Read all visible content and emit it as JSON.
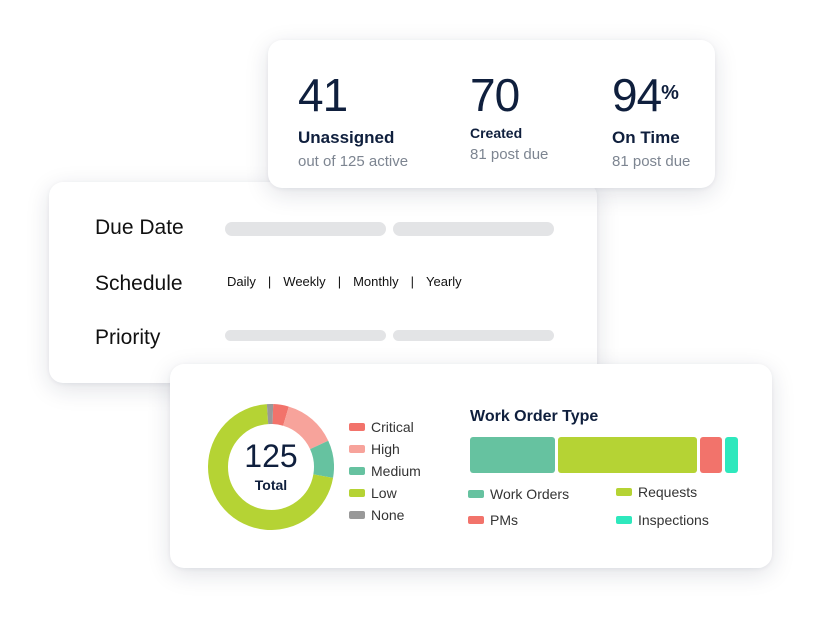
{
  "stats": [
    {
      "value": "41",
      "label": "Unassigned",
      "sub": "out of 125 active"
    },
    {
      "value": "70",
      "label": "Created",
      "sub": "81 post due"
    },
    {
      "value": "94",
      "suffix": "%",
      "label": "On Time",
      "sub": "81 post due"
    }
  ],
  "form": {
    "due_date_label": "Due Date",
    "schedule_label": "Schedule",
    "priority_label": "Priority",
    "schedule_options": [
      "Daily",
      "Weekly",
      "Monthly",
      "Yearly"
    ],
    "separator": "|"
  },
  "donut": {
    "total": "125",
    "total_label": "Total",
    "legend": [
      {
        "name": "Critical",
        "color": "#f2736b"
      },
      {
        "name": "High",
        "color": "#f7a39b"
      },
      {
        "name": "Medium",
        "color": "#66c2a0"
      },
      {
        "name": "Low",
        "color": "#b5d334"
      },
      {
        "name": "None",
        "color": "#999999"
      }
    ]
  },
  "work_order_type": {
    "title": "Work Order Type",
    "legend": [
      {
        "name": "Work Orders",
        "color": "#66c2a0"
      },
      {
        "name": "Requests",
        "color": "#b5d334"
      },
      {
        "name": "PMs",
        "color": "#f2736b"
      },
      {
        "name": "Inspections",
        "color": "#2ee8bd"
      }
    ]
  },
  "chart_data": [
    {
      "type": "pie",
      "categories": [
        "Critical",
        "High",
        "Medium",
        "Low",
        "None"
      ],
      "values": [
        5,
        17,
        12,
        89,
        2
      ],
      "colors": [
        "#f2736b",
        "#f7a39b",
        "#66c2a0",
        "#b5d334",
        "#999999"
      ]
    },
    {
      "type": "bar",
      "categories": [
        "Work Orders",
        "Requests",
        "PMs",
        "Inspections"
      ],
      "values": [
        32,
        52,
        8,
        5
      ],
      "colors": [
        "#66c2a0",
        "#b5d334",
        "#f2736b",
        "#2ee8bd"
      ]
    }
  ]
}
